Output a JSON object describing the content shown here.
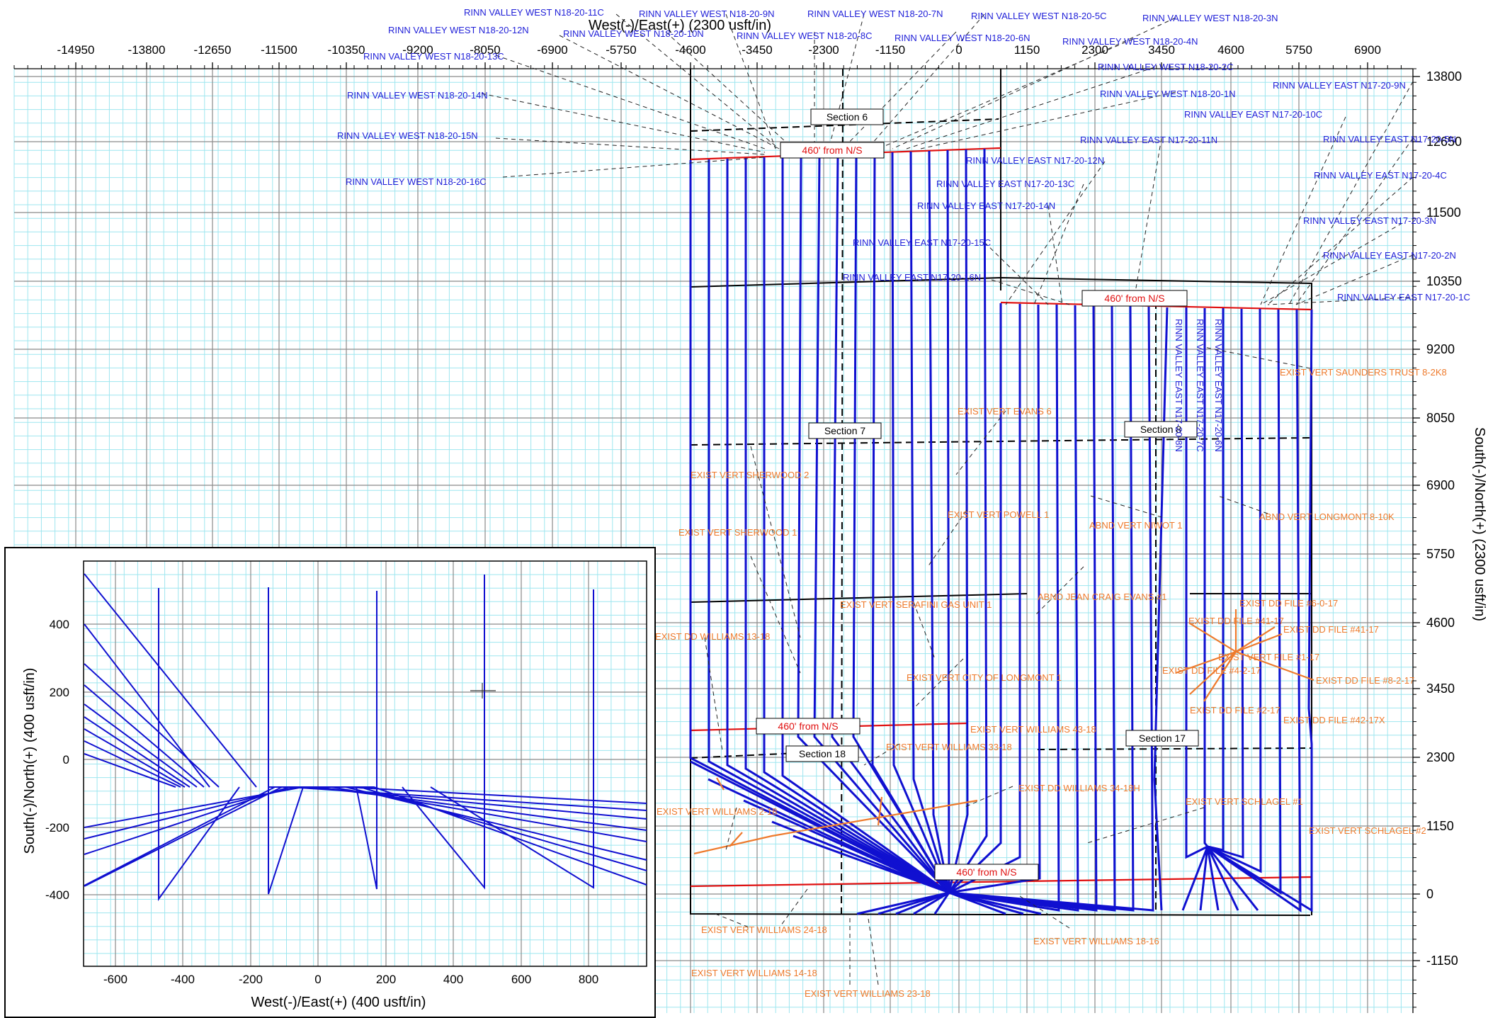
{
  "plan_view": {
    "x_axis_title": "West(-)/East(+) (2300 usft/in)",
    "y_axis_title": "South(-)/North(+) (2300 usft/in)",
    "x_ticks": [
      "-14950",
      "-13800",
      "-12650",
      "-11500",
      "-10350",
      "-9200",
      "-8050",
      "-6900",
      "-5750",
      "-4600",
      "-3450",
      "-2300",
      "-1150",
      "0",
      "1150",
      "2300",
      "3450",
      "4600",
      "5750",
      "6900"
    ],
    "y_ticks": [
      "13800",
      "12650",
      "11500",
      "10350",
      "9200",
      "8050",
      "6900",
      "5750",
      "4600",
      "3450",
      "2300",
      "1150",
      "0",
      "-1150"
    ],
    "colors": {
      "grid_minor": "#9ee6ef",
      "grid_major": "#8a8a8a",
      "well": "#1010d0",
      "label_blue": "#1f1fd8",
      "label_orange": "#ee7a2c",
      "setback": "#e01010",
      "boundary": "#000000"
    },
    "section_labels": [
      {
        "text": "Section 6"
      },
      {
        "text": "Section 7"
      },
      {
        "text": "Section 8"
      },
      {
        "text": "Section 18"
      },
      {
        "text": "Section 17"
      }
    ],
    "setback_labels": [
      {
        "text": "460' from N/S"
      },
      {
        "text": "460' from N/S"
      },
      {
        "text": "460' from N/S"
      },
      {
        "text": "460' from N/S"
      }
    ],
    "blue_labels": [
      {
        "text": "RINN VALLEY WEST N18-20-11C"
      },
      {
        "text": "RINN VALLEY WEST N18-20-9N"
      },
      {
        "text": "RINN VALLEY WEST N18-20-7N"
      },
      {
        "text": "RINN VALLEY WEST N18-20-5C"
      },
      {
        "text": "RINN VALLEY WEST N18-20-3N"
      },
      {
        "text": "RINN VALLEY WEST N18-20-12N"
      },
      {
        "text": "RINN VALLEY WEST N18-20-10N"
      },
      {
        "text": "RINN VALLEY WEST N18-20-8C"
      },
      {
        "text": "RINN VALLEY WEST N18-20-6N"
      },
      {
        "text": "RINN VALLEY WEST N18-20-4N"
      },
      {
        "text": "RINN VALLEY WEST N18-20-13C"
      },
      {
        "text": "RINN VALLEY WEST N18-20-2C"
      },
      {
        "text": "RINN VALLEY WEST N18-20-14N"
      },
      {
        "text": "RINN VALLEY WEST N18-20-1N"
      },
      {
        "text": "RINN VALLEY EAST N17-20-9N"
      },
      {
        "text": "RINN VALLEY EAST N17-20-10C"
      },
      {
        "text": "RINN VALLEY WEST N18-20-15N"
      },
      {
        "text": "RINN VALLEY EAST N17-20-11N"
      },
      {
        "text": "RINN VALLEY EAST N17-20-5N"
      },
      {
        "text": "RINN VALLEY EAST N17-20-12N"
      },
      {
        "text": "RINN VALLEY WEST N18-20-16C"
      },
      {
        "text": "RINN VALLEY EAST N17-20-4C"
      },
      {
        "text": "RINN VALLEY EAST N17-20-13C"
      },
      {
        "text": "RINN VALLEY EAST N17-20-14N"
      },
      {
        "text": "RINN VALLEY EAST N17-20-3N"
      },
      {
        "text": "RINN VALLEY EAST N17-20-15C"
      },
      {
        "text": "RINN VALLEY EAST N17-20-2N"
      },
      {
        "text": "RINN VALLEY EAST N17-20-16N"
      },
      {
        "text": "RINN VALLEY EAST N17-20-1C"
      }
    ],
    "vertical_blue_labels": [
      {
        "text": "RINN VALLEY EAST N17-20-8N"
      },
      {
        "text": "RINN VALLEY EAST N17-20-7C"
      },
      {
        "text": "RINN VALLEY EAST N17-20-6N"
      }
    ],
    "orange_labels": [
      {
        "text": "EXIST VERT SAUNDERS TRUST 8-2K8"
      },
      {
        "text": "EXIST VERT EVANS 6"
      },
      {
        "text": "EXIST VERT SHERWOOD 2"
      },
      {
        "text": "EXIST VERT POWELL 1"
      },
      {
        "text": "ABND VERT NIWOT 1"
      },
      {
        "text": "ABND VERT LONGMONT 8-10K"
      },
      {
        "text": "EXIST VERT SHERWOOD 1"
      },
      {
        "text": "ABND JEAN CRAIG EVANS #1"
      },
      {
        "text": "EXIST DD FILE #6-0-17"
      },
      {
        "text": "EXIST VERT SERAFINI GAS UNIT 1"
      },
      {
        "text": "EXIST DD FILE #41-17"
      },
      {
        "text": "EXIST DD FILE #41-17"
      },
      {
        "text": "EXIST DD WILLIAMS 13-18"
      },
      {
        "text": "EXIST VERT FILE #1-17"
      },
      {
        "text": "EXIST DD FILE #4-2-17"
      },
      {
        "text": "EXIST VERT CITY OF LONGMONT 1"
      },
      {
        "text": "EXIST DD FILE #8-2-17"
      },
      {
        "text": "EXIST DD FILE #2-17"
      },
      {
        "text": "EXIST DD FILE #42-17X"
      },
      {
        "text": "EXIST VERT WILLIAMS 43-18"
      },
      {
        "text": "EXIST VERT WILLIAMS 33-18"
      },
      {
        "text": "EXIST DD WILLIAMS 34-18H"
      },
      {
        "text": "EXIST VERT SCHLAGEL #1"
      },
      {
        "text": "EXIST VERT WILLIAMS 2-18"
      },
      {
        "text": "EXIST VERT SCHLAGEL #2"
      },
      {
        "text": "EXIST VERT WILLIAMS 24-18"
      },
      {
        "text": "EXIST VERT WILLIAMS 18-16"
      },
      {
        "text": "EXIST VERT WILLIAMS 14-18"
      },
      {
        "text": "EXIST VERT WILLIAMS 23-18"
      }
    ]
  },
  "inset": {
    "x_axis_title": "West(-)/East(+) (400 usft/in)",
    "y_axis_title": "South(-)/North(+) (400 usft/in)",
    "x_ticks": [
      "-600",
      "-400",
      "-200",
      "0",
      "200",
      "400",
      "600",
      "800"
    ],
    "y_ticks": [
      "400",
      "200",
      "0",
      "-200",
      "-400"
    ]
  }
}
